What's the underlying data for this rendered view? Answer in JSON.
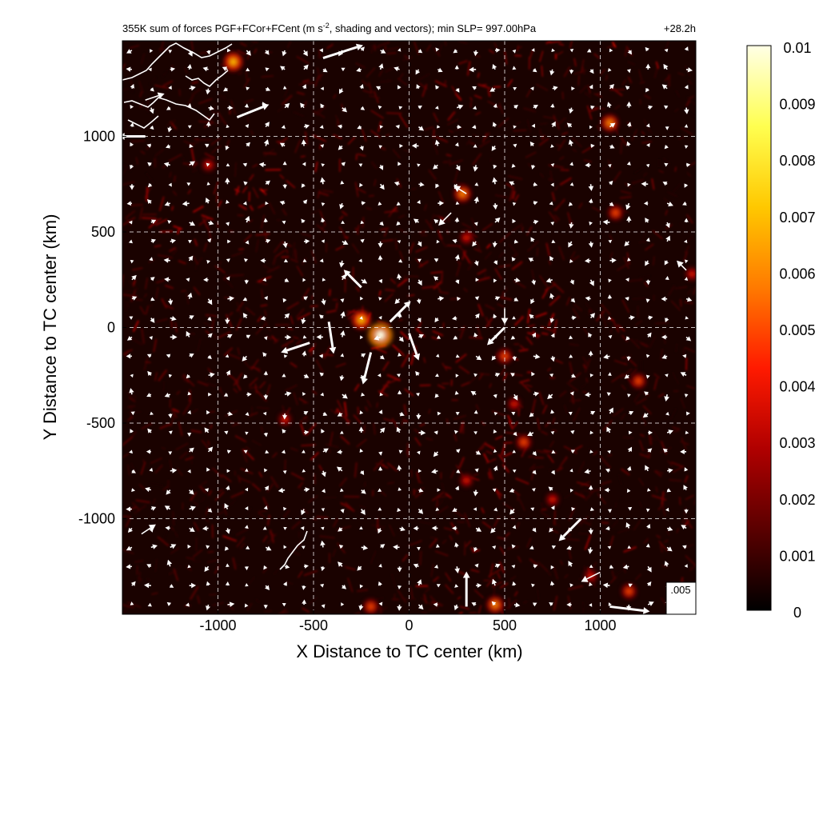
{
  "chart_data": {
    "type": "heatmap",
    "title": "355K sum of forces PGF+FCor+FCent (m s",
    "title_superscript": "-2",
    "title_rest": ", shading and vectors); min SLP= 997.00hPa",
    "time_label": "+28.2h",
    "xlabel": "X Distance to TC center (km)",
    "ylabel": "Y Distance to TC center (km)",
    "xlim": [
      -1500,
      1500
    ],
    "ylim": [
      -1500,
      1500
    ],
    "xticks": [
      -1000,
      -500,
      0,
      500,
      1000
    ],
    "yticks": [
      1000,
      500,
      0,
      -500,
      -1000
    ],
    "xtick_labels": [
      "-1000",
      "-500",
      "0",
      "500",
      "1000"
    ],
    "ytick_labels": [
      "1000",
      "500",
      "0",
      "-500",
      "-1000"
    ],
    "grid": true,
    "colormap": "black-red-orange-yellow-white",
    "colorbar": {
      "min": 0,
      "max": 0.01,
      "labels": [
        "0.01",
        "0.009",
        "0.008",
        "0.007",
        "0.006",
        "0.005",
        "0.004",
        "0.003",
        "0.002",
        "0.001",
        "0"
      ],
      "colors": [
        "#000000",
        "#5a0000",
        "#b00000",
        "#ff1a00",
        "#ff7a00",
        "#ffc800",
        "#ffff50",
        "#ffffe6"
      ]
    },
    "reference_vector": {
      "label": ".005",
      "value": 0.005
    },
    "hotspots": [
      {
        "x": -150,
        "y": -40,
        "v": 0.01
      },
      {
        "x": -250,
        "y": 40,
        "v": 0.007
      },
      {
        "x": 280,
        "y": 700,
        "v": 0.006
      },
      {
        "x": 1050,
        "y": 1070,
        "v": 0.006
      },
      {
        "x": 1080,
        "y": 600,
        "v": 0.005
      },
      {
        "x": 1200,
        "y": -280,
        "v": 0.005
      },
      {
        "x": 600,
        "y": -600,
        "v": 0.005
      },
      {
        "x": 500,
        "y": -150,
        "v": 0.005
      },
      {
        "x": 750,
        "y": -900,
        "v": 0.004
      },
      {
        "x": 950,
        "y": -1300,
        "v": 0.004
      },
      {
        "x": 1150,
        "y": -1380,
        "v": 0.005
      },
      {
        "x": 450,
        "y": -1450,
        "v": 0.006
      },
      {
        "x": -200,
        "y": -1460,
        "v": 0.005
      },
      {
        "x": -920,
        "y": 1390,
        "v": 0.007
      },
      {
        "x": -1050,
        "y": 850,
        "v": 0.004
      },
      {
        "x": -650,
        "y": -480,
        "v": 0.004
      },
      {
        "x": 300,
        "y": -800,
        "v": 0.004
      },
      {
        "x": 1480,
        "y": 280,
        "v": 0.004
      },
      {
        "x": 300,
        "y": 470,
        "v": 0.004
      },
      {
        "x": 550,
        "y": -400,
        "v": 0.004
      }
    ],
    "vectors": [
      {
        "x": -450,
        "y": 1410,
        "u": 0.0025,
        "v": 0.0008
      },
      {
        "x": -900,
        "y": 1100,
        "u": 0.002,
        "v": 0.0008
      },
      {
        "x": -1380,
        "y": 1000,
        "u": -0.0017,
        "v": 0
      },
      {
        "x": -420,
        "y": 30,
        "u": 0.0003,
        "v": -0.002
      },
      {
        "x": -520,
        "y": -80,
        "u": -0.0018,
        "v": -0.0006
      },
      {
        "x": -100,
        "y": 30,
        "u": 0.0013,
        "v": 0.0013
      },
      {
        "x": 0,
        "y": -30,
        "u": 0.0006,
        "v": -0.0017
      },
      {
        "x": -200,
        "y": -130,
        "u": -0.0005,
        "v": -0.002
      },
      {
        "x": -250,
        "y": 210,
        "u": -0.0011,
        "v": 0.0011
      },
      {
        "x": 500,
        "y": 0,
        "u": -0.0011,
        "v": -0.0011
      },
      {
        "x": 500,
        "y": 100,
        "u": 0,
        "v": -0.001
      },
      {
        "x": 900,
        "y": -1000,
        "u": -0.0014,
        "v": -0.0014
      },
      {
        "x": 1000,
        "y": -1280,
        "u": -0.0012,
        "v": -0.0006
      },
      {
        "x": 300,
        "y": -1460,
        "u": 0,
        "v": 0.0022
      },
      {
        "x": 1050,
        "y": -1460,
        "u": 0.0025,
        "v": -0.0003
      },
      {
        "x": -1400,
        "y": -1080,
        "u": 0.0009,
        "v": 0.0006
      },
      {
        "x": -1380,
        "y": 1190,
        "u": 0.0012,
        "v": 0.0004
      },
      {
        "x": 1450,
        "y": 300,
        "u": -0.0006,
        "v": 0.0006
      },
      {
        "x": 300,
        "y": 700,
        "u": -0.0008,
        "v": 0.0005
      },
      {
        "x": 220,
        "y": 600,
        "u": -0.0008,
        "v": -0.0008
      }
    ]
  }
}
